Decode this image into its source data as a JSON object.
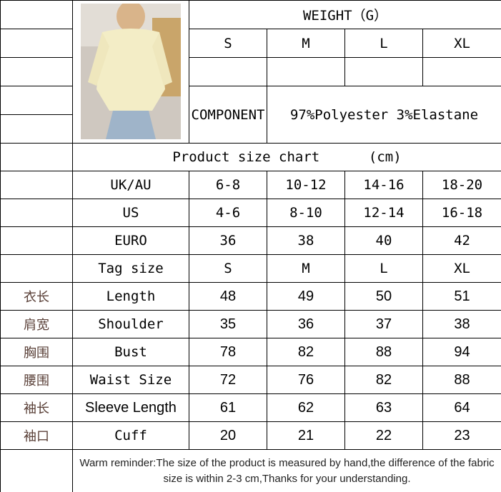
{
  "weight_header": "WEIGHT（G）",
  "weight_sizes": [
    "S",
    "M",
    "L",
    "XL"
  ],
  "component_label": "COMPONENT",
  "component_value": "97%Polyester 3%Elastane",
  "chart_title": "Product size chart",
  "chart_unit": "(cm)",
  "rows": [
    {
      "zh": "",
      "label": "UK/AU",
      "values": [
        "6-8",
        "10-12",
        "14-16",
        "18-20"
      ]
    },
    {
      "zh": "",
      "label": "US",
      "values": [
        "4-6",
        "8-10",
        "12-14",
        "16-18"
      ]
    },
    {
      "zh": "",
      "label": "EURO",
      "values": [
        "36",
        "38",
        "40",
        "42"
      ]
    },
    {
      "zh": "",
      "label": "Tag size",
      "values": [
        "S",
        "M",
        "L",
        "XL"
      ]
    },
    {
      "zh": "衣长",
      "label": "Length",
      "values": [
        "48",
        "49",
        "50",
        "51"
      ]
    },
    {
      "zh": "肩宽",
      "label": "Shoulder",
      "values": [
        "35",
        "36",
        "37",
        "38"
      ]
    },
    {
      "zh": "胸围",
      "label": "Bust",
      "values": [
        "78",
        "82",
        "88",
        "94"
      ]
    },
    {
      "zh": "腰围",
      "label": "Waist Size",
      "values": [
        "72",
        "76",
        "82",
        "88"
      ]
    },
    {
      "zh": "袖长",
      "label": "Sleeve Length",
      "values": [
        "61",
        "62",
        "63",
        "64"
      ]
    },
    {
      "zh": "袖口",
      "label": "Cuff",
      "values": [
        "20",
        "21",
        "22",
        "23"
      ]
    }
  ],
  "reminder": "Warm reminder:The size of the product is measured by hand,the difference of the fabric size is within 2-3 cm,Thanks for your understanding."
}
